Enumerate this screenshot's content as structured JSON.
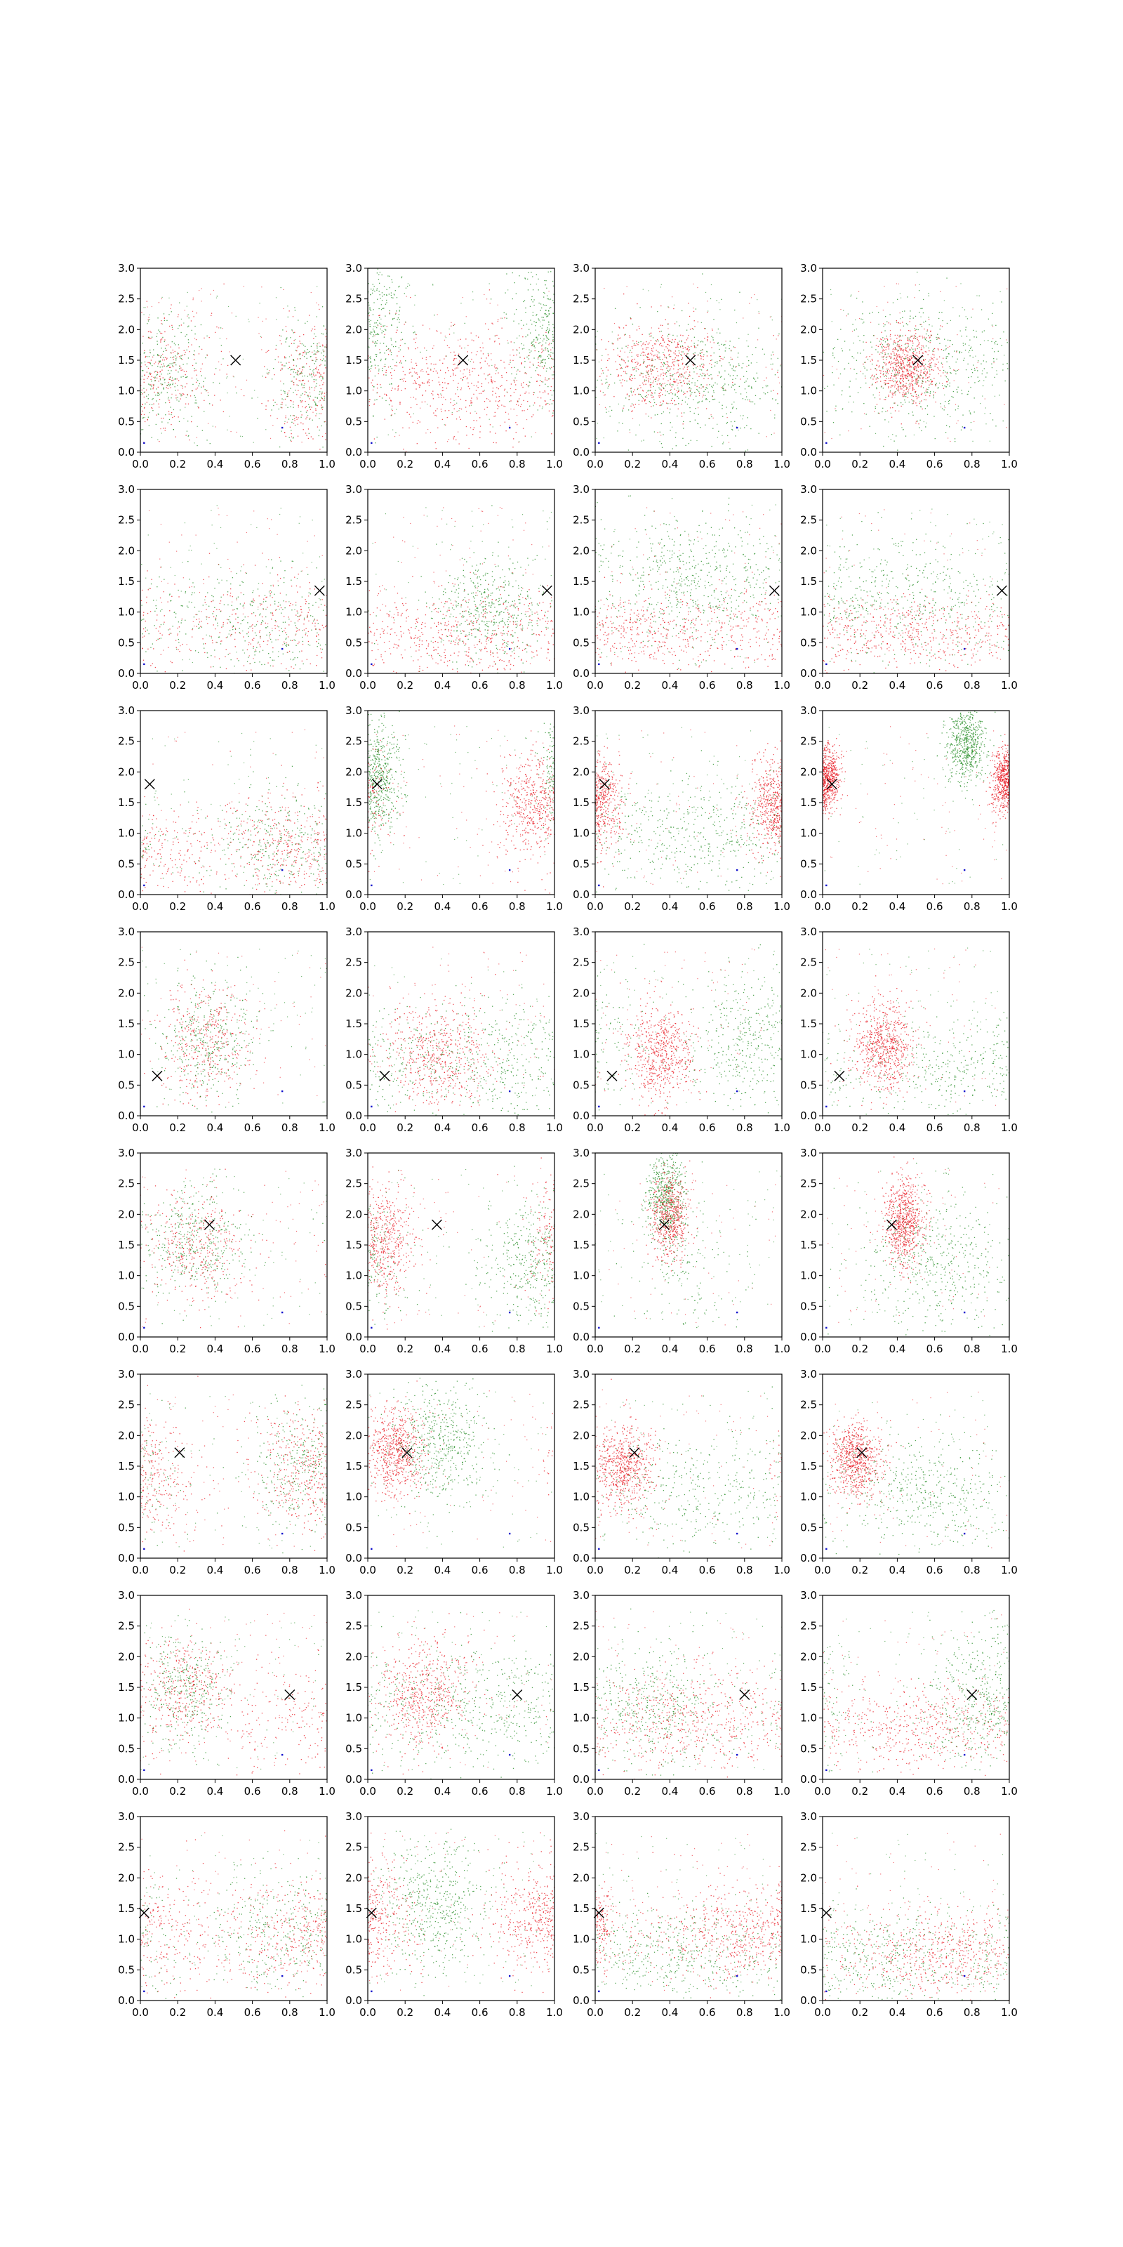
{
  "figure": {
    "rows": 8,
    "cols": 4,
    "colors": {
      "series_a": "#e8141e",
      "series_b": "#1f8a1f",
      "marker": "#000000",
      "minor_point": "#1010cc",
      "axis": "#000000"
    }
  },
  "chart_data": {
    "type": "scatter",
    "xlim": [
      0.0,
      1.0
    ],
    "ylim": [
      0.0,
      3.0
    ],
    "x_ticks": [
      "0.0",
      "0.2",
      "0.4",
      "0.6",
      "0.8",
      "1.0"
    ],
    "y_ticks": [
      "0.0",
      "0.5",
      "1.0",
      "1.5",
      "2.0",
      "2.5",
      "3.0"
    ],
    "grid": false,
    "legend": "none",
    "title": "",
    "xlabel": "",
    "ylabel": "",
    "markers": [
      [
        0.51,
        1.5
      ],
      [
        0.96,
        1.35
      ],
      [
        0.05,
        1.8
      ],
      [
        0.09,
        0.65
      ],
      [
        0.37,
        1.83
      ],
      [
        0.21,
        1.72
      ],
      [
        0.8,
        1.38
      ],
      [
        0.02,
        1.43
      ]
    ],
    "minor_points": [
      [
        0.02,
        0.15
      ],
      [
        0.76,
        0.4
      ]
    ],
    "panels": [
      {
        "row": 1,
        "col": 1,
        "clusters": [
          {
            "color": "mix",
            "cx": 0.15,
            "cy": 1.35,
            "sx": 0.12,
            "sy": 0.5,
            "n": 500,
            "wrap": true
          },
          {
            "color": "mix",
            "cx": 0.88,
            "cy": 1.2,
            "sx": 0.1,
            "sy": 0.5,
            "n": 420,
            "wrap": true
          }
        ]
      },
      {
        "row": 1,
        "col": 2,
        "clusters": [
          {
            "color": "green",
            "cx": 0.0,
            "cy": 2.0,
            "sx": 0.12,
            "sy": 0.6,
            "n": 500,
            "wrap": true
          },
          {
            "color": "red",
            "cx": 0.5,
            "cy": 1.15,
            "sx": 0.3,
            "sy": 0.45,
            "n": 550,
            "wrap": true
          }
        ]
      },
      {
        "row": 1,
        "col": 3,
        "clusters": [
          {
            "color": "red",
            "cx": 0.35,
            "cy": 1.4,
            "sx": 0.15,
            "sy": 0.35,
            "n": 550,
            "wrap": true
          },
          {
            "color": "green",
            "cx": 0.55,
            "cy": 1.2,
            "sx": 0.25,
            "sy": 0.5,
            "n": 500,
            "wrap": true
          }
        ]
      },
      {
        "row": 1,
        "col": 4,
        "clusters": [
          {
            "color": "red",
            "cx": 0.45,
            "cy": 1.4,
            "sx": 0.09,
            "sy": 0.3,
            "n": 700,
            "wrap": true
          },
          {
            "color": "green",
            "cx": 0.55,
            "cy": 1.4,
            "sx": 0.25,
            "sy": 0.55,
            "n": 500,
            "wrap": true
          }
        ]
      },
      {
        "row": 2,
        "col": 1,
        "clusters": [
          {
            "color": "mix",
            "cx": 0.7,
            "cy": 0.8,
            "sx": 0.3,
            "sy": 0.45,
            "n": 650,
            "wrap": true
          }
        ]
      },
      {
        "row": 2,
        "col": 2,
        "clusters": [
          {
            "color": "green",
            "cx": 0.65,
            "cy": 1.0,
            "sx": 0.15,
            "sy": 0.45,
            "n": 450,
            "wrap": true
          },
          {
            "color": "red",
            "cx": 0.5,
            "cy": 0.6,
            "sx": 0.35,
            "sy": 0.35,
            "n": 500,
            "wrap": true
          }
        ]
      },
      {
        "row": 2,
        "col": 3,
        "clusters": [
          {
            "color": "green",
            "cx": 0.55,
            "cy": 1.5,
            "sx": 0.25,
            "sy": 0.5,
            "n": 550,
            "wrap": true
          },
          {
            "color": "red",
            "cx": 0.2,
            "cy": 0.7,
            "sx": 0.3,
            "sy": 0.35,
            "n": 500,
            "wrap": true
          }
        ]
      },
      {
        "row": 2,
        "col": 4,
        "clusters": [
          {
            "color": "green",
            "cx": 0.35,
            "cy": 1.2,
            "sx": 0.3,
            "sy": 0.5,
            "n": 450,
            "wrap": true
          },
          {
            "color": "red",
            "cx": 0.6,
            "cy": 0.65,
            "sx": 0.35,
            "sy": 0.3,
            "n": 500,
            "wrap": true
          }
        ]
      },
      {
        "row": 3,
        "col": 1,
        "clusters": [
          {
            "color": "mix",
            "cx": 0.75,
            "cy": 0.85,
            "sx": 0.18,
            "sy": 0.45,
            "n": 650,
            "wrap": true
          },
          {
            "color": "red",
            "cx": 0.15,
            "cy": 0.6,
            "sx": 0.2,
            "sy": 0.4,
            "n": 200,
            "wrap": true
          }
        ]
      },
      {
        "row": 3,
        "col": 2,
        "clusters": [
          {
            "color": "green",
            "cx": 0.06,
            "cy": 1.9,
            "sx": 0.06,
            "sy": 0.45,
            "n": 550,
            "wrap": true
          },
          {
            "color": "red",
            "cx": 0.9,
            "cy": 1.5,
            "sx": 0.1,
            "sy": 0.45,
            "n": 550,
            "wrap": true
          }
        ]
      },
      {
        "row": 3,
        "col": 3,
        "clusters": [
          {
            "color": "red",
            "cx": 0.02,
            "cy": 1.5,
            "sx": 0.06,
            "sy": 0.35,
            "n": 450,
            "wrap": true
          },
          {
            "color": "red",
            "cx": 0.95,
            "cy": 1.45,
            "sx": 0.08,
            "sy": 0.4,
            "n": 400,
            "wrap": true
          },
          {
            "color": "green",
            "cx": 0.6,
            "cy": 1.0,
            "sx": 0.3,
            "sy": 0.5,
            "n": 450,
            "wrap": true
          }
        ]
      },
      {
        "row": 3,
        "col": 4,
        "clusters": [
          {
            "color": "red",
            "cx": 0.02,
            "cy": 1.95,
            "sx": 0.04,
            "sy": 0.25,
            "n": 600,
            "wrap": true
          },
          {
            "color": "red",
            "cx": 0.98,
            "cy": 1.8,
            "sx": 0.04,
            "sy": 0.25,
            "n": 450,
            "wrap": true
          },
          {
            "color": "green",
            "cx": 0.77,
            "cy": 2.45,
            "sx": 0.05,
            "sy": 0.3,
            "n": 600,
            "wrap": true
          }
        ]
      },
      {
        "row": 4,
        "col": 1,
        "clusters": [
          {
            "color": "mix",
            "cx": 0.35,
            "cy": 1.2,
            "sx": 0.12,
            "sy": 0.5,
            "n": 750,
            "wrap": true
          }
        ]
      },
      {
        "row": 4,
        "col": 2,
        "clusters": [
          {
            "color": "red",
            "cx": 0.38,
            "cy": 1.0,
            "sx": 0.15,
            "sy": 0.45,
            "n": 550,
            "wrap": true
          },
          {
            "color": "green",
            "cx": 0.6,
            "cy": 0.9,
            "sx": 0.35,
            "sy": 0.5,
            "n": 500,
            "wrap": true
          }
        ]
      },
      {
        "row": 4,
        "col": 3,
        "clusters": [
          {
            "color": "red",
            "cx": 0.35,
            "cy": 1.0,
            "sx": 0.09,
            "sy": 0.4,
            "n": 600,
            "wrap": true
          },
          {
            "color": "green",
            "cx": 0.85,
            "cy": 1.2,
            "sx": 0.18,
            "sy": 0.55,
            "n": 450,
            "wrap": true
          }
        ]
      },
      {
        "row": 4,
        "col": 4,
        "clusters": [
          {
            "color": "red",
            "cx": 0.33,
            "cy": 1.15,
            "sx": 0.08,
            "sy": 0.35,
            "n": 650,
            "wrap": true
          },
          {
            "color": "green",
            "cx": 0.75,
            "cy": 0.8,
            "sx": 0.25,
            "sy": 0.4,
            "n": 350,
            "wrap": true
          }
        ]
      },
      {
        "row": 5,
        "col": 1,
        "clusters": [
          {
            "color": "mix",
            "cx": 0.28,
            "cy": 1.5,
            "sx": 0.14,
            "sy": 0.45,
            "n": 750,
            "wrap": true
          }
        ]
      },
      {
        "row": 5,
        "col": 2,
        "clusters": [
          {
            "color": "red",
            "cx": 0.08,
            "cy": 1.6,
            "sx": 0.1,
            "sy": 0.45,
            "n": 550,
            "wrap": true
          },
          {
            "color": "green",
            "cx": 0.9,
            "cy": 1.3,
            "sx": 0.15,
            "sy": 0.5,
            "n": 450,
            "wrap": true
          }
        ]
      },
      {
        "row": 5,
        "col": 3,
        "clusters": [
          {
            "color": "green",
            "cx": 0.38,
            "cy": 2.3,
            "sx": 0.05,
            "sy": 0.35,
            "n": 500,
            "wrap": true
          },
          {
            "color": "red",
            "cx": 0.4,
            "cy": 1.95,
            "sx": 0.05,
            "sy": 0.35,
            "n": 550,
            "wrap": true
          },
          {
            "color": "green",
            "cx": 0.5,
            "cy": 1.2,
            "sx": 0.15,
            "sy": 0.6,
            "n": 150,
            "wrap": true
          }
        ]
      },
      {
        "row": 5,
        "col": 4,
        "clusters": [
          {
            "color": "red",
            "cx": 0.44,
            "cy": 1.9,
            "sx": 0.05,
            "sy": 0.35,
            "n": 700,
            "wrap": true
          },
          {
            "color": "green",
            "cx": 0.6,
            "cy": 1.2,
            "sx": 0.2,
            "sy": 0.55,
            "n": 450,
            "wrap": true
          }
        ]
      },
      {
        "row": 6,
        "col": 1,
        "clusters": [
          {
            "color": "mix",
            "cx": 0.88,
            "cy": 1.45,
            "sx": 0.14,
            "sy": 0.5,
            "n": 650,
            "wrap": true
          },
          {
            "color": "red",
            "cx": 0.05,
            "cy": 1.3,
            "sx": 0.15,
            "sy": 0.5,
            "n": 250,
            "wrap": true
          }
        ]
      },
      {
        "row": 6,
        "col": 2,
        "clusters": [
          {
            "color": "red",
            "cx": 0.15,
            "cy": 1.75,
            "sx": 0.08,
            "sy": 0.35,
            "n": 650,
            "wrap": true
          },
          {
            "color": "green",
            "cx": 0.4,
            "cy": 1.9,
            "sx": 0.12,
            "sy": 0.5,
            "n": 500,
            "wrap": true
          }
        ]
      },
      {
        "row": 6,
        "col": 3,
        "clusters": [
          {
            "color": "red",
            "cx": 0.15,
            "cy": 1.5,
            "sx": 0.08,
            "sy": 0.35,
            "n": 650,
            "wrap": true
          },
          {
            "color": "green",
            "cx": 0.6,
            "cy": 1.1,
            "sx": 0.3,
            "sy": 0.5,
            "n": 350,
            "wrap": true
          }
        ]
      },
      {
        "row": 6,
        "col": 4,
        "clusters": [
          {
            "color": "red",
            "cx": 0.18,
            "cy": 1.6,
            "sx": 0.07,
            "sy": 0.3,
            "n": 700,
            "wrap": true
          },
          {
            "color": "green",
            "cx": 0.55,
            "cy": 1.1,
            "sx": 0.25,
            "sy": 0.45,
            "n": 450,
            "wrap": true
          }
        ]
      },
      {
        "row": 7,
        "col": 1,
        "clusters": [
          {
            "color": "mix",
            "cx": 0.25,
            "cy": 1.5,
            "sx": 0.12,
            "sy": 0.45,
            "n": 700,
            "wrap": true
          },
          {
            "color": "red",
            "cx": 0.8,
            "cy": 1.0,
            "sx": 0.2,
            "sy": 0.5,
            "n": 200,
            "wrap": true
          }
        ]
      },
      {
        "row": 7,
        "col": 2,
        "clusters": [
          {
            "color": "red",
            "cx": 0.3,
            "cy": 1.4,
            "sx": 0.12,
            "sy": 0.45,
            "n": 550,
            "wrap": true
          },
          {
            "color": "green",
            "cx": 0.7,
            "cy": 1.2,
            "sx": 0.3,
            "sy": 0.5,
            "n": 500,
            "wrap": true
          }
        ]
      },
      {
        "row": 7,
        "col": 3,
        "clusters": [
          {
            "color": "green",
            "cx": 0.3,
            "cy": 1.2,
            "sx": 0.2,
            "sy": 0.5,
            "n": 450,
            "wrap": true
          },
          {
            "color": "red",
            "cx": 0.6,
            "cy": 1.0,
            "sx": 0.35,
            "sy": 0.4,
            "n": 550,
            "wrap": true
          }
        ]
      },
      {
        "row": 7,
        "col": 4,
        "clusters": [
          {
            "color": "red",
            "cx": 0.55,
            "cy": 0.85,
            "sx": 0.3,
            "sy": 0.35,
            "n": 500,
            "wrap": true
          },
          {
            "color": "green",
            "cx": 0.85,
            "cy": 1.3,
            "sx": 0.15,
            "sy": 0.55,
            "n": 450,
            "wrap": true
          }
        ]
      },
      {
        "row": 8,
        "col": 1,
        "clusters": [
          {
            "color": "mix",
            "cx": 0.78,
            "cy": 1.1,
            "sx": 0.22,
            "sy": 0.5,
            "n": 700,
            "wrap": true
          },
          {
            "color": "red",
            "cx": 0.1,
            "cy": 1.0,
            "sx": 0.2,
            "sy": 0.5,
            "n": 200,
            "wrap": true
          }
        ]
      },
      {
        "row": 8,
        "col": 2,
        "clusters": [
          {
            "color": "green",
            "cx": 0.35,
            "cy": 1.5,
            "sx": 0.15,
            "sy": 0.55,
            "n": 500,
            "wrap": true
          },
          {
            "color": "red",
            "cx": 0.95,
            "cy": 1.35,
            "sx": 0.15,
            "sy": 0.45,
            "n": 500,
            "wrap": true
          },
          {
            "color": "red",
            "cx": 0.02,
            "cy": 1.4,
            "sx": 0.06,
            "sy": 0.45,
            "n": 150,
            "wrap": true
          }
        ]
      },
      {
        "row": 8,
        "col": 3,
        "clusters": [
          {
            "color": "red",
            "cx": 0.75,
            "cy": 1.1,
            "sx": 0.22,
            "sy": 0.4,
            "n": 550,
            "wrap": true
          },
          {
            "color": "green",
            "cx": 0.4,
            "cy": 0.8,
            "sx": 0.3,
            "sy": 0.4,
            "n": 450,
            "wrap": true
          },
          {
            "color": "red",
            "cx": 0.02,
            "cy": 1.3,
            "sx": 0.04,
            "sy": 0.3,
            "n": 120,
            "wrap": true
          }
        ]
      },
      {
        "row": 8,
        "col": 4,
        "clusters": [
          {
            "color": "red",
            "cx": 0.65,
            "cy": 0.75,
            "sx": 0.25,
            "sy": 0.35,
            "n": 550,
            "wrap": true
          },
          {
            "color": "green",
            "cx": 0.3,
            "cy": 0.7,
            "sx": 0.3,
            "sy": 0.4,
            "n": 450,
            "wrap": true
          }
        ]
      }
    ]
  }
}
